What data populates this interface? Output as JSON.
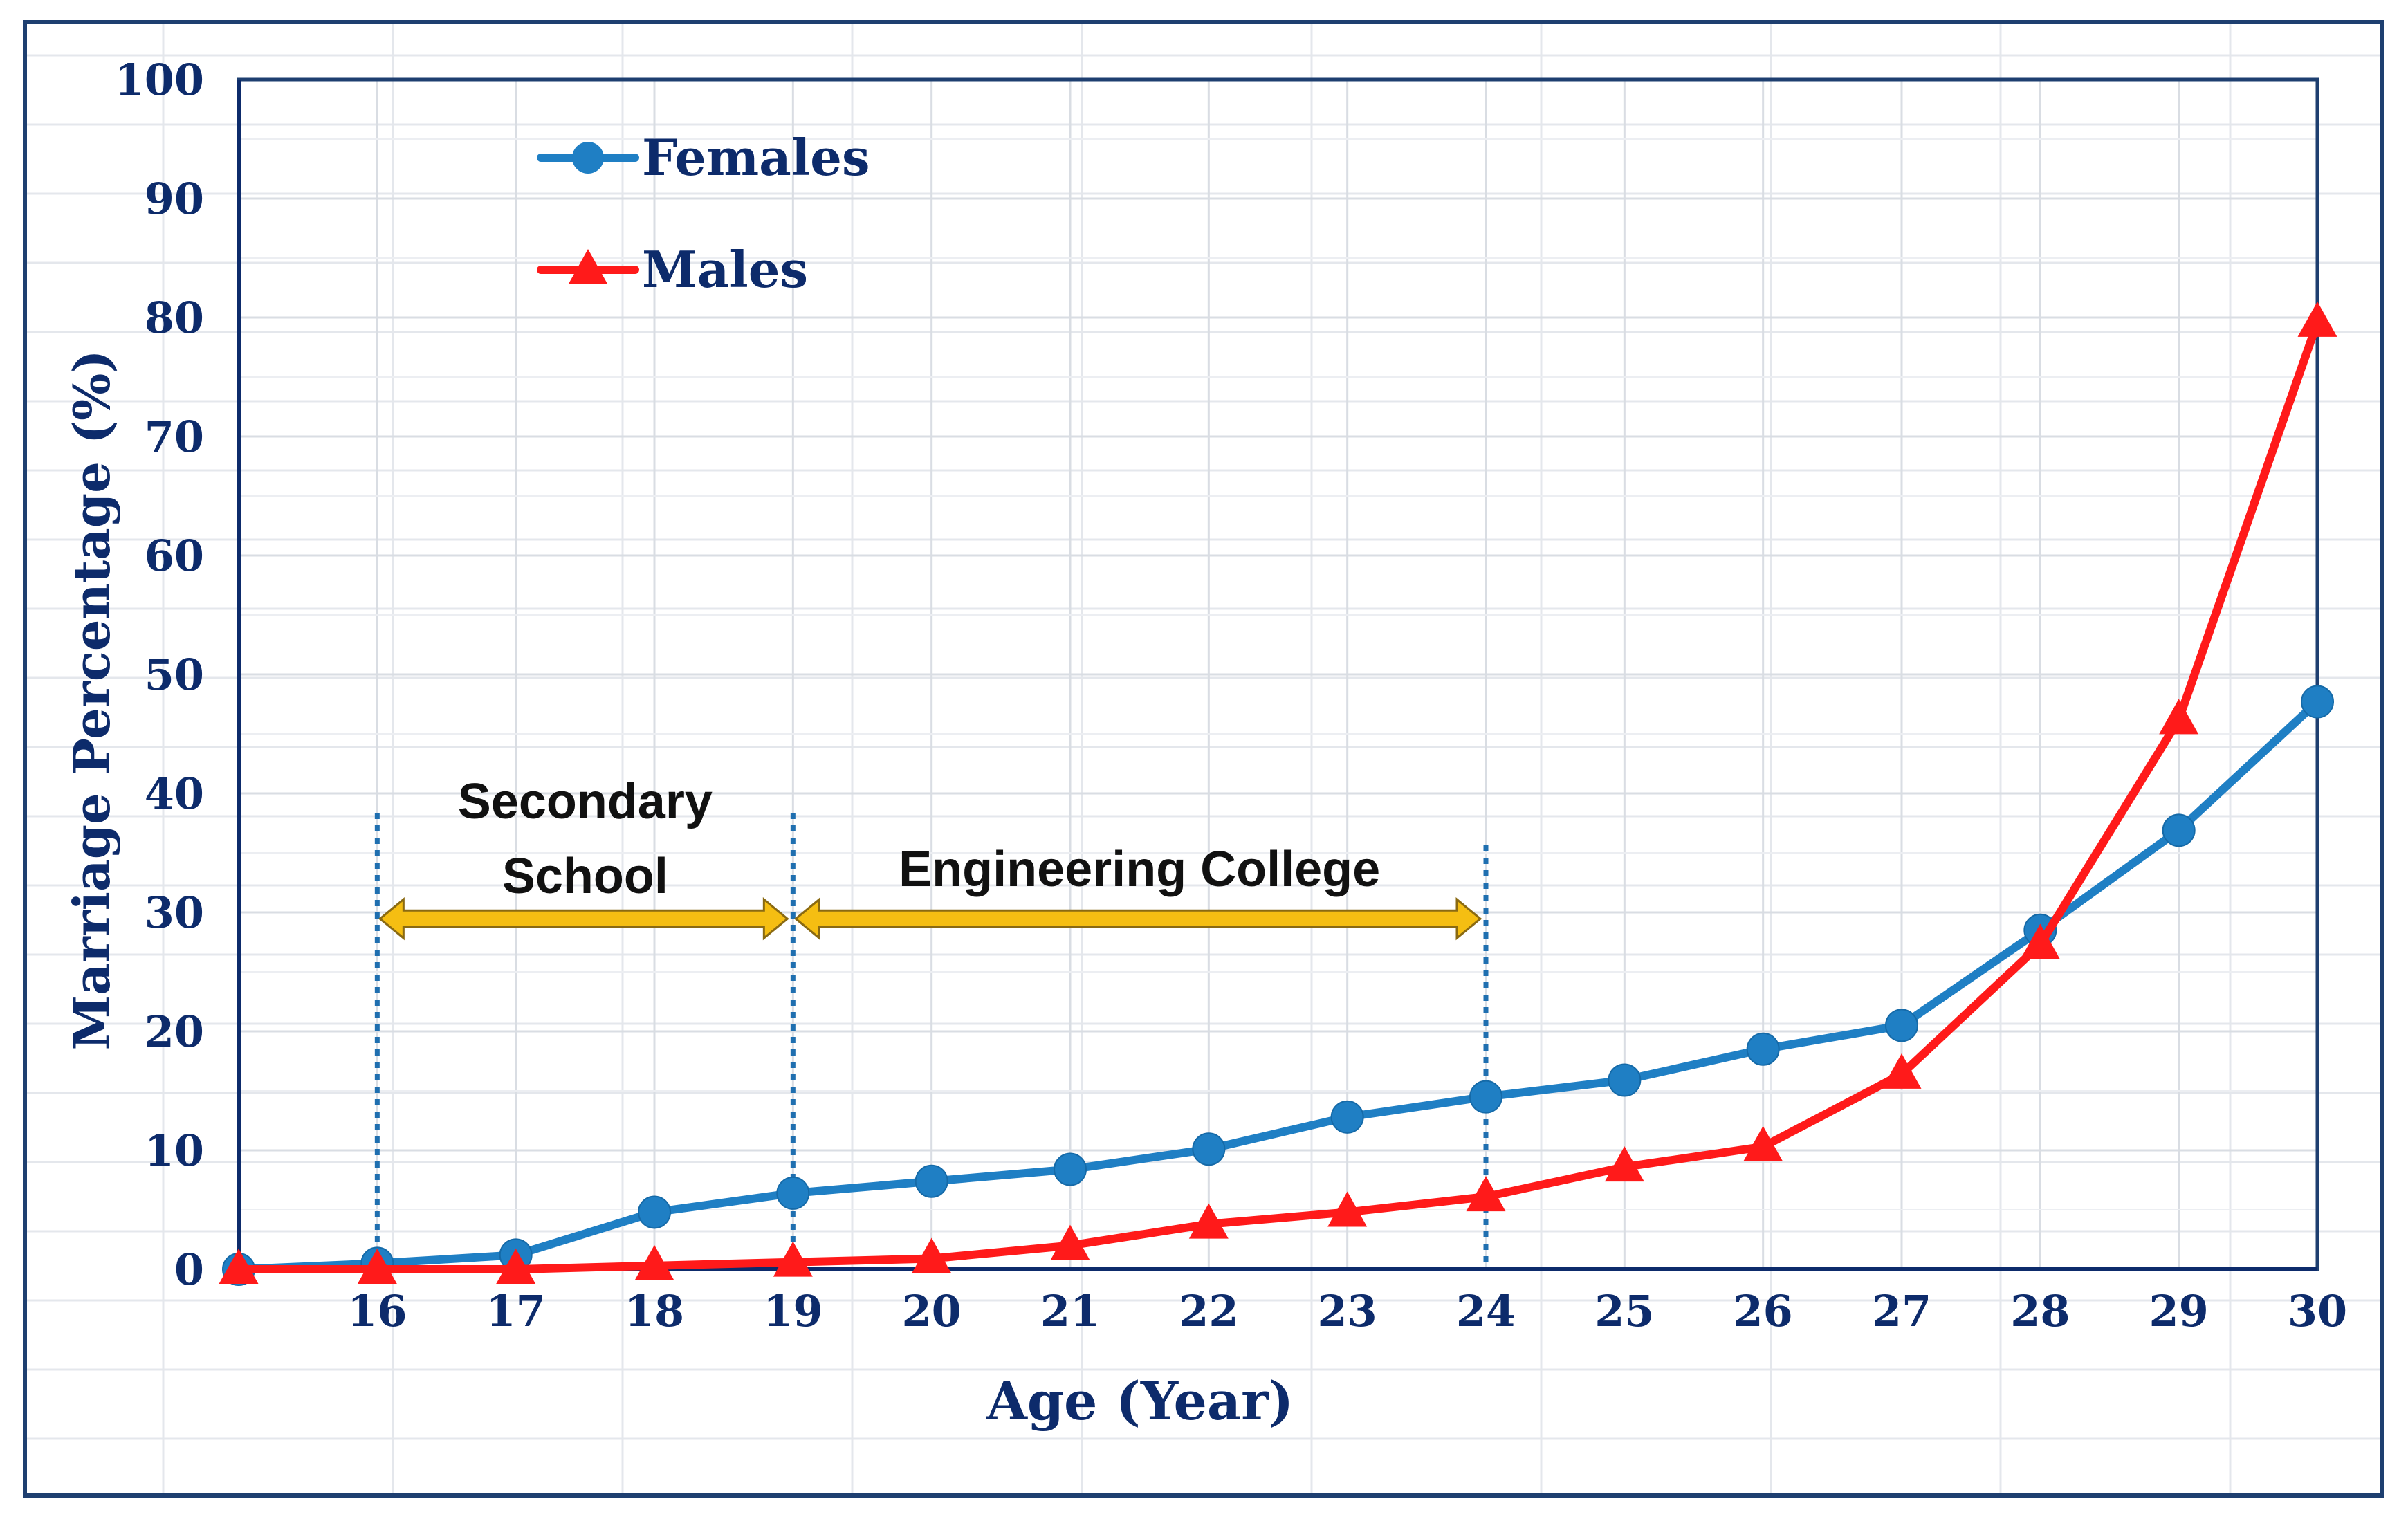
{
  "chart_data": {
    "type": "line",
    "title": "",
    "xlabel": "Age  (Year)",
    "ylabel": "Marriage Percentage (%)",
    "xlim": [
      15,
      30
    ],
    "ylim": [
      0,
      100
    ],
    "x": [
      15,
      16,
      17,
      18,
      19,
      20,
      21,
      22,
      23,
      24,
      25,
      26,
      27,
      28,
      29,
      30
    ],
    "x_tick_labels": [
      "16",
      "17",
      "18",
      "19",
      "20",
      "21",
      "22",
      "23",
      "24",
      "25",
      "26",
      "27",
      "28",
      "29",
      "30"
    ],
    "x_tick_values": [
      16,
      17,
      18,
      19,
      20,
      21,
      22,
      23,
      24,
      25,
      26,
      27,
      28,
      29,
      30
    ],
    "y_tick_labels": [
      "0",
      "10",
      "20",
      "30",
      "40",
      "50",
      "60",
      "70",
      "80",
      "90",
      "100"
    ],
    "y_tick_values": [
      0,
      10,
      20,
      30,
      40,
      50,
      60,
      70,
      80,
      90,
      100
    ],
    "grid": true,
    "legend_position": "top-left",
    "series": [
      {
        "name": "Females",
        "marker": "circle",
        "color": "#1f7fc4",
        "values": [
          0,
          0.5,
          1.2,
          4.8,
          6.4,
          7.4,
          8.4,
          10.1,
          12.8,
          14.5,
          15.9,
          18.5,
          20.5,
          28.5,
          36.9,
          47.7
        ]
      },
      {
        "name": "Males",
        "marker": "triangle",
        "color": "#ff1a1a",
        "values": [
          0,
          0,
          0,
          0.3,
          0.6,
          0.9,
          2.0,
          3.8,
          4.8,
          6.1,
          8.6,
          10.3,
          16.4,
          27.3,
          46.2,
          79.6
        ]
      }
    ],
    "annotations": [
      {
        "text_lines": [
          "Secondary",
          "School"
        ],
        "from_x": 16,
        "to_x": 19,
        "arrow_y": 29
      },
      {
        "text_lines": [
          "Engineering College"
        ],
        "from_x": 19,
        "to_x": 24,
        "arrow_y": 29
      }
    ],
    "boundary_lines_x": [
      16,
      19,
      24
    ],
    "colors": {
      "axis": "#0d2b6b",
      "tick_text": "#0d2b6b",
      "annotation_text": "#111111",
      "arrow_fill": "#f5be12",
      "arrow_stroke": "#8a6a12",
      "boundary_line": "#1f6fb0",
      "grid": "#d9dde3",
      "frame": "#1e3f70"
    }
  }
}
